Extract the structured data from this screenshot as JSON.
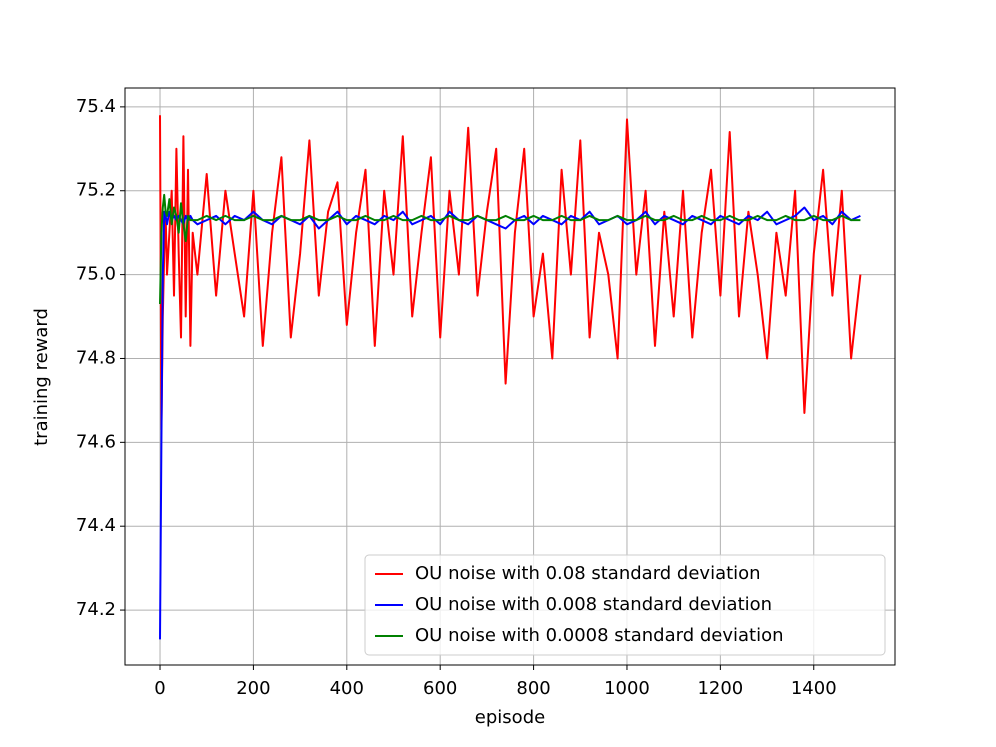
{
  "chart_data": {
    "type": "line",
    "xlabel": "episode",
    "ylabel": "training reward",
    "x": [
      0,
      3,
      6,
      9,
      12,
      15,
      20,
      25,
      30,
      35,
      40,
      45,
      50,
      55,
      60,
      65,
      70,
      80,
      100,
      120,
      140,
      160,
      180,
      200,
      220,
      240,
      260,
      280,
      300,
      320,
      340,
      360,
      380,
      400,
      420,
      440,
      460,
      480,
      500,
      520,
      540,
      560,
      580,
      600,
      620,
      640,
      660,
      680,
      700,
      720,
      740,
      760,
      780,
      800,
      820,
      840,
      860,
      880,
      900,
      920,
      940,
      960,
      980,
      1000,
      1020,
      1040,
      1060,
      1080,
      1100,
      1120,
      1140,
      1160,
      1180,
      1200,
      1220,
      1240,
      1260,
      1280,
      1300,
      1320,
      1340,
      1360,
      1380,
      1400,
      1420,
      1440,
      1460,
      1480,
      1500
    ],
    "series": [
      {
        "name": "OU noise with 0.08 standard deviation",
        "color": "#ff0000",
        "values": [
          75.38,
          74.63,
          74.9,
          75.05,
          75.15,
          75.0,
          75.1,
          75.2,
          74.95,
          75.3,
          75.05,
          74.85,
          75.33,
          74.9,
          75.25,
          74.83,
          75.1,
          75.0,
          75.24,
          74.95,
          75.2,
          75.05,
          74.9,
          75.2,
          74.83,
          75.1,
          75.28,
          74.85,
          75.05,
          75.32,
          74.95,
          75.15,
          75.22,
          74.88,
          75.1,
          75.25,
          74.83,
          75.2,
          75.0,
          75.33,
          74.9,
          75.1,
          75.28,
          74.85,
          75.2,
          75.0,
          75.35,
          74.95,
          75.15,
          75.3,
          74.74,
          75.1,
          75.3,
          74.9,
          75.05,
          74.8,
          75.25,
          75.0,
          75.32,
          74.85,
          75.1,
          75.0,
          74.8,
          75.37,
          75.0,
          75.2,
          74.83,
          75.15,
          74.9,
          75.2,
          74.85,
          75.1,
          75.25,
          74.95,
          75.34,
          74.9,
          75.15,
          75.0,
          74.8,
          75.1,
          74.95,
          75.2,
          74.67,
          75.05,
          75.25,
          74.95,
          75.2,
          74.8,
          75.0
        ]
      },
      {
        "name": "OU noise with 0.008 standard deviation",
        "color": "#0000ff",
        "values": [
          74.13,
          74.6,
          75.0,
          75.15,
          75.14,
          75.12,
          75.15,
          75.13,
          75.14,
          75.13,
          75.14,
          75.13,
          75.12,
          75.14,
          75.13,
          75.14,
          75.13,
          75.12,
          75.13,
          75.14,
          75.12,
          75.14,
          75.13,
          75.15,
          75.13,
          75.12,
          75.14,
          75.13,
          75.12,
          75.14,
          75.11,
          75.13,
          75.15,
          75.12,
          75.14,
          75.13,
          75.12,
          75.14,
          75.13,
          75.15,
          75.12,
          75.13,
          75.14,
          75.12,
          75.15,
          75.13,
          75.12,
          75.14,
          75.13,
          75.12,
          75.11,
          75.13,
          75.14,
          75.12,
          75.14,
          75.13,
          75.12,
          75.14,
          75.13,
          75.15,
          75.12,
          75.13,
          75.14,
          75.12,
          75.13,
          75.15,
          75.12,
          75.14,
          75.13,
          75.12,
          75.14,
          75.13,
          75.12,
          75.14,
          75.13,
          75.12,
          75.14,
          75.13,
          75.15,
          75.12,
          75.13,
          75.14,
          75.16,
          75.13,
          75.14,
          75.12,
          75.15,
          75.13,
          75.14
        ]
      },
      {
        "name": "OU noise with 0.0008 standard deviation",
        "color": "#008000",
        "values": [
          74.93,
          75.1,
          75.16,
          75.19,
          75.15,
          75.14,
          75.18,
          75.12,
          75.16,
          75.14,
          75.1,
          75.17,
          75.12,
          75.08,
          75.14,
          75.13,
          75.13,
          75.13,
          75.14,
          75.13,
          75.14,
          75.13,
          75.13,
          75.14,
          75.13,
          75.13,
          75.14,
          75.13,
          75.13,
          75.14,
          75.13,
          75.13,
          75.14,
          75.13,
          75.13,
          75.14,
          75.13,
          75.13,
          75.14,
          75.13,
          75.13,
          75.14,
          75.13,
          75.13,
          75.14,
          75.13,
          75.13,
          75.14,
          75.13,
          75.13,
          75.14,
          75.13,
          75.13,
          75.14,
          75.13,
          75.13,
          75.14,
          75.13,
          75.13,
          75.14,
          75.13,
          75.13,
          75.14,
          75.13,
          75.13,
          75.14,
          75.13,
          75.13,
          75.14,
          75.13,
          75.13,
          75.14,
          75.13,
          75.13,
          75.14,
          75.13,
          75.13,
          75.14,
          75.13,
          75.13,
          75.14,
          75.13,
          75.13,
          75.14,
          75.13,
          75.13,
          75.14,
          75.13,
          75.13
        ]
      }
    ],
    "xlim": [
      -75,
      1574
    ],
    "ylim": [
      74.069,
      75.445
    ],
    "xticks": [
      0,
      200,
      400,
      600,
      800,
      1000,
      1200,
      1400
    ],
    "yticks": [
      74.2,
      74.4,
      74.6,
      74.8,
      {
        "value": 75,
        "label": "75.0"
      },
      75.2,
      75.4
    ],
    "grid": true,
    "legend": "lower right"
  }
}
